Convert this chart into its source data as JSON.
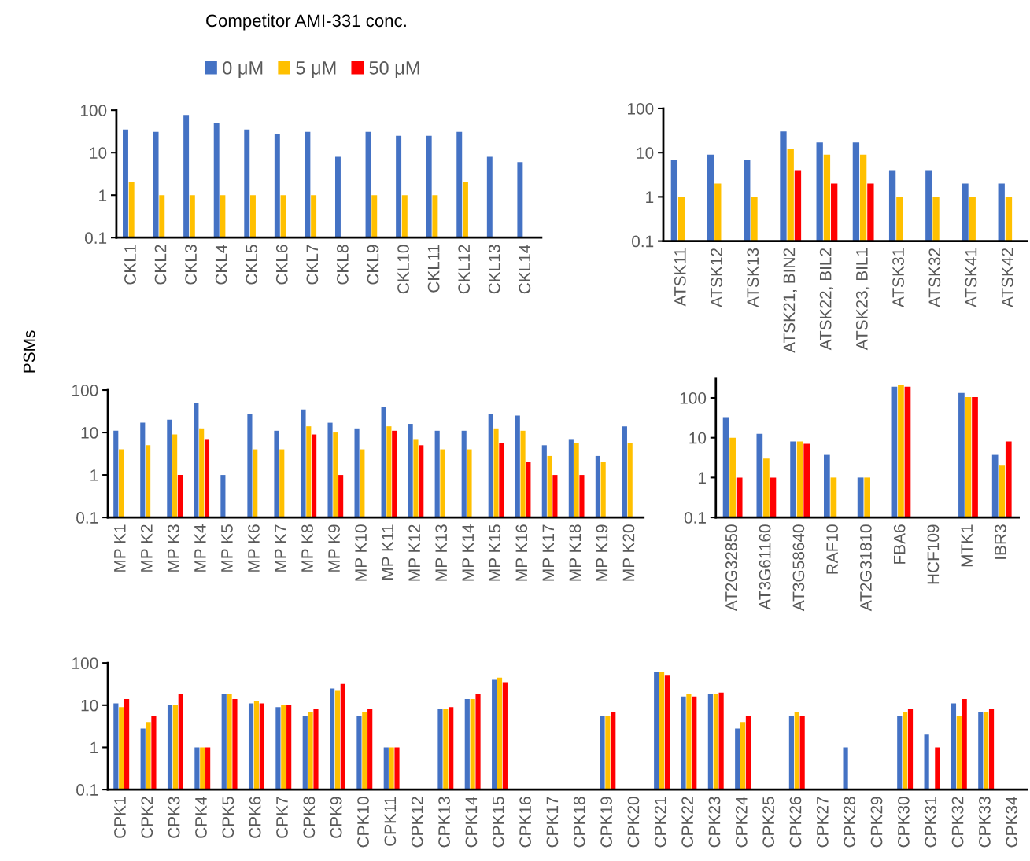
{
  "chart_data": [
    {
      "type": "bar",
      "legend_title": "Competitor AMI-331 conc.",
      "legend": "top",
      "log": true,
      "ylim": [
        0.1,
        100
      ],
      "yticks": [
        0.1,
        1,
        10,
        100
      ],
      "categories": [
        "CKL1",
        "CKL2",
        "CKL3",
        "CKL4",
        "CKL5",
        "CKL6",
        "CKL7",
        "CKL8",
        "CKL9",
        "CKL10",
        "CKL11",
        "CKL12",
        "CKL13",
        "CKL14"
      ],
      "series": [
        {
          "name": "0 μM",
          "color": "#4472c4",
          "values": [
            35,
            31,
            77,
            50,
            35,
            28,
            31,
            8,
            31,
            25,
            25,
            31,
            8,
            6
          ]
        },
        {
          "name": "5 μM",
          "color": "#ffc000",
          "values": [
            2,
            1,
            1,
            1,
            1,
            1,
            1,
            null,
            1,
            1,
            1,
            2,
            null,
            null
          ]
        },
        {
          "name": "50 μM",
          "color": "#ff0000",
          "values": [
            null,
            null,
            null,
            null,
            null,
            null,
            null,
            null,
            null,
            null,
            null,
            null,
            null,
            null
          ]
        }
      ]
    },
    {
      "type": "bar",
      "log": true,
      "ylim": [
        0.1,
        100
      ],
      "yticks": [
        0.1,
        1,
        10,
        100
      ],
      "categories": [
        "ATSK11",
        "ATSK12",
        "ATSK13",
        "ATSK21, BIN2",
        "ATSK22, BIL2",
        "ATSK23, BIL1",
        "ATSK31",
        "ATSK32",
        "ATSK41",
        "ATSK42"
      ],
      "series": [
        {
          "color": "#4472c4",
          "values": [
            7,
            9,
            7,
            30,
            17,
            17,
            4,
            4,
            2,
            2
          ]
        },
        {
          "color": "#ffc000",
          "values": [
            1,
            2,
            1,
            12,
            9,
            9,
            1,
            1,
            1,
            1
          ]
        },
        {
          "color": "#ff0000",
          "values": [
            null,
            null,
            null,
            4,
            2,
            2,
            null,
            null,
            null,
            null
          ]
        }
      ]
    },
    {
      "type": "bar",
      "ylabel": "PSMs",
      "log": true,
      "ylim": [
        0.1,
        100
      ],
      "yticks": [
        0.1,
        1,
        10,
        100
      ],
      "categories": [
        "MP K1",
        "MP K2",
        "MP K3",
        "MP K4",
        "MP K5",
        "MP K6",
        "MP K7",
        "MP K8",
        "MP K9",
        "MP K10",
        "MP K11",
        "MP K12",
        "MP K13",
        "MP K14",
        "MP K15",
        "MP K16",
        "MP K17",
        "MP K18",
        "MP K19",
        "MP K20"
      ],
      "series": [
        {
          "color": "#4472c4",
          "values": [
            11,
            17,
            20,
            49,
            1,
            28,
            11,
            35,
            17,
            12.5,
            40,
            16,
            11,
            11,
            28,
            25,
            5,
            7,
            2.8,
            14
          ]
        },
        {
          "color": "#ffc000",
          "values": [
            4,
            5,
            9,
            12.5,
            null,
            4,
            4,
            14,
            10,
            4,
            14,
            7,
            4,
            4,
            12.5,
            11,
            2.8,
            5.6,
            2,
            5.6
          ]
        },
        {
          "color": "#ff0000",
          "values": [
            null,
            null,
            1,
            7,
            null,
            null,
            null,
            9,
            1,
            null,
            11,
            5,
            null,
            null,
            5.6,
            2,
            1,
            1,
            null,
            null
          ]
        }
      ]
    },
    {
      "type": "bar",
      "log": true,
      "ylim": [
        0.1,
        300
      ],
      "yticks": [
        0.1,
        1,
        10,
        100
      ],
      "categories": [
        "AT2G32850",
        "AT3G61160",
        "AT3G58640",
        "RAF10",
        "AT2G31810",
        "FBA6",
        "HCF109",
        "MTK1",
        "IBR3"
      ],
      "series": [
        {
          "color": "#4472c4",
          "values": [
            33,
            12.5,
            8,
            3.7,
            1,
            190,
            null,
            133,
            3.7
          ]
        },
        {
          "color": "#ffc000",
          "values": [
            10,
            3,
            8,
            1,
            1,
            215,
            null,
            105,
            2
          ]
        },
        {
          "color": "#ff0000",
          "values": [
            1,
            1,
            7,
            null,
            null,
            190,
            null,
            105,
            8
          ]
        }
      ]
    },
    {
      "type": "bar",
      "log": true,
      "ylim": [
        0.1,
        100
      ],
      "yticks": [
        0.1,
        1,
        10,
        100
      ],
      "categories": [
        "CPK1",
        "CPK2",
        "CPK3",
        "CPK4",
        "CPK5",
        "CPK6",
        "CPK7",
        "CPK8",
        "CPK9",
        "CPK10",
        "CPK11",
        "CPK12",
        "CPK13",
        "CPK14",
        "CPK15",
        "CPK16",
        "CPK17",
        "CPK18",
        "CPK19",
        "CPK20",
        "CPK21",
        "CPK22",
        "CPK23",
        "CPK24",
        "CPK25",
        "CPK26",
        "CPK27",
        "CPK28",
        "CPK29",
        "CPK30",
        "CPK31",
        "CPK32",
        "CPK33",
        "CPK34"
      ],
      "series": [
        {
          "color": "#4472c4",
          "values": [
            11,
            2.8,
            10,
            1,
            18,
            11,
            9,
            5.6,
            25,
            5.6,
            1,
            null,
            8,
            14,
            40,
            null,
            null,
            null,
            5.6,
            null,
            63,
            16,
            18,
            2.8,
            null,
            5.6,
            null,
            1,
            null,
            5.6,
            2,
            11,
            7,
            null
          ]
        },
        {
          "color": "#ffc000",
          "values": [
            9,
            4,
            10,
            1,
            18,
            12.5,
            10,
            7,
            22,
            7,
            1,
            null,
            8,
            14,
            45,
            null,
            null,
            null,
            5.6,
            null,
            63,
            18,
            18,
            4,
            null,
            7,
            null,
            null,
            null,
            7,
            null,
            5.6,
            7,
            null
          ]
        },
        {
          "color": "#ff0000",
          "values": [
            14,
            5.6,
            18,
            1,
            14,
            11,
            10,
            8,
            32,
            8,
            1,
            null,
            9,
            18,
            35,
            null,
            null,
            null,
            7,
            null,
            50,
            16,
            20,
            5.6,
            null,
            5.6,
            null,
            null,
            null,
            8,
            1,
            14,
            8,
            null
          ]
        }
      ]
    }
  ]
}
